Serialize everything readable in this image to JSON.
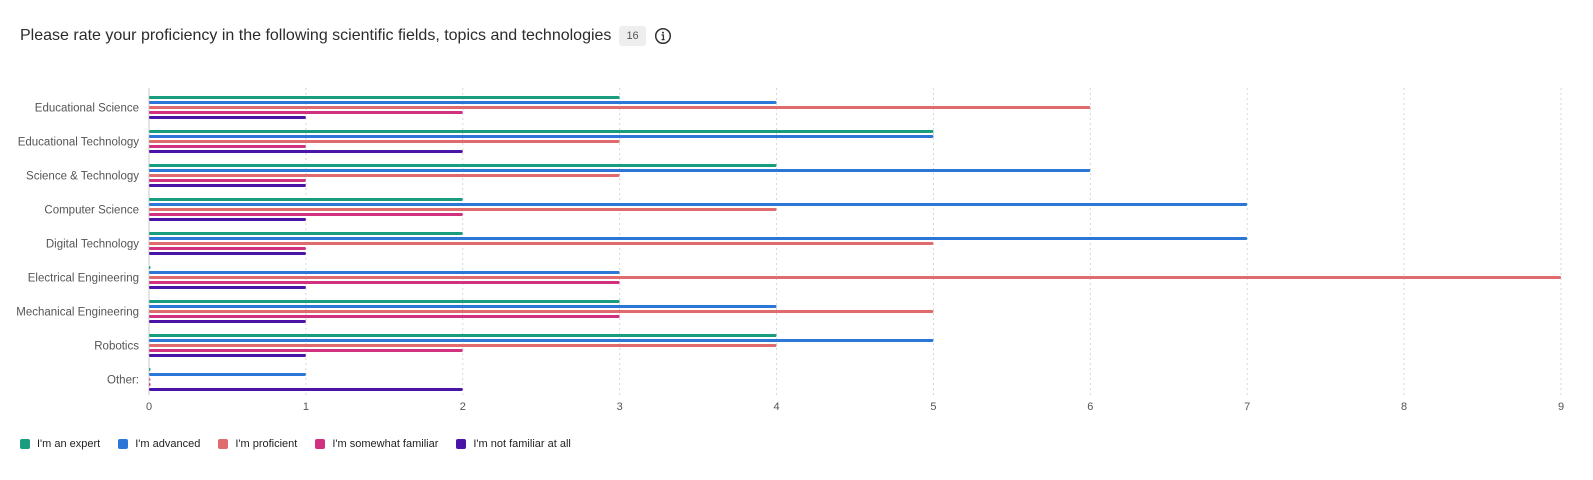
{
  "header": {
    "title": "Please rate your proficiency in the following scientific fields, topics and technologies",
    "badge": "16",
    "info_icon": "info-icon"
  },
  "chart_data": {
    "type": "bar",
    "orientation": "horizontal",
    "categories": [
      "Educational Science",
      "Educational Technology",
      "Science & Technology",
      "Computer Science",
      "Digital Technology",
      "Electrical Engineering",
      "Mechanical Engineering",
      "Robotics",
      "Other:"
    ],
    "series": [
      {
        "name": "I'm an expert",
        "color": "#1a9c7f",
        "values": [
          3,
          5,
          4,
          2,
          2,
          0,
          3,
          4,
          0
        ]
      },
      {
        "name": "I'm advanced",
        "color": "#2b76d6",
        "values": [
          4,
          5,
          6,
          7,
          7,
          3,
          4,
          5,
          1
        ]
      },
      {
        "name": "I'm proficient",
        "color": "#e06b6e",
        "values": [
          6,
          3,
          3,
          4,
          5,
          9,
          5,
          4,
          0
        ]
      },
      {
        "name": "I'm somewhat familiar",
        "color": "#d0327f",
        "values": [
          2,
          1,
          1,
          2,
          1,
          3,
          3,
          2,
          0
        ]
      },
      {
        "name": "I'm not familiar at all",
        "color": "#4a14a8",
        "values": [
          1,
          2,
          1,
          1,
          1,
          1,
          1,
          1,
          2
        ]
      }
    ],
    "xlim": [
      0,
      9
    ],
    "xticks": [
      "0",
      "1",
      "2",
      "3",
      "4",
      "5",
      "6",
      "7",
      "8",
      "9"
    ],
    "grid": true,
    "legend_position": "bottom-left"
  }
}
